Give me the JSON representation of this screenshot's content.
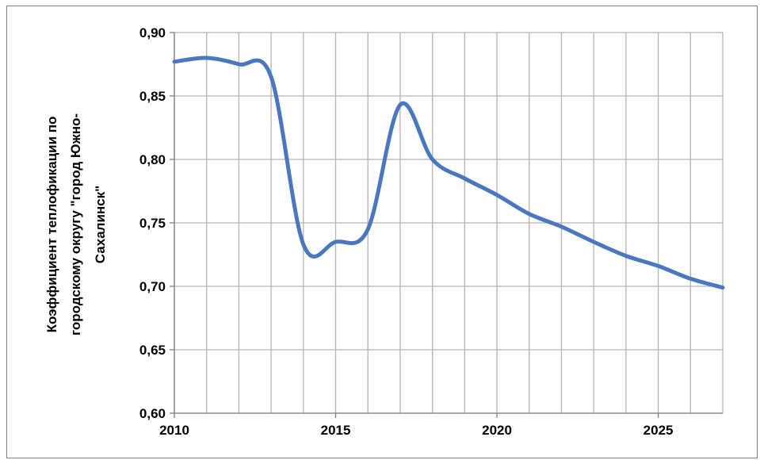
{
  "chart_data": {
    "type": "line",
    "title": "",
    "ylabel_lines": [
      "Коэффициент теплофикации по",
      "городскому округу \"город Южно-",
      "Сахалинск\""
    ],
    "xlabel": "",
    "xlim": [
      2010,
      2027
    ],
    "ylim": [
      0.6,
      0.9
    ],
    "x_ticks": [
      2010,
      2015,
      2020,
      2025
    ],
    "x_tick_labels": [
      "2010",
      "2015",
      "2020",
      "2025"
    ],
    "y_ticks": [
      0.6,
      0.65,
      0.7,
      0.75,
      0.8,
      0.85,
      0.9
    ],
    "y_tick_labels": [
      "0,60",
      "0,65",
      "0,70",
      "0,75",
      "0,80",
      "0,85",
      "0,90"
    ],
    "grid": true,
    "legend": "none",
    "series": [
      {
        "color": "#4a78bf",
        "x": [
          2010,
          2011,
          2012,
          2013,
          2014,
          2015,
          2016,
          2017,
          2018,
          2019,
          2020,
          2021,
          2022,
          2023,
          2024,
          2025,
          2026,
          2027
        ],
        "y": [
          0.877,
          0.88,
          0.875,
          0.865,
          0.733,
          0.735,
          0.745,
          0.843,
          0.8,
          0.785,
          0.772,
          0.757,
          0.747,
          0.735,
          0.724,
          0.716,
          0.706,
          0.699
        ]
      }
    ]
  }
}
